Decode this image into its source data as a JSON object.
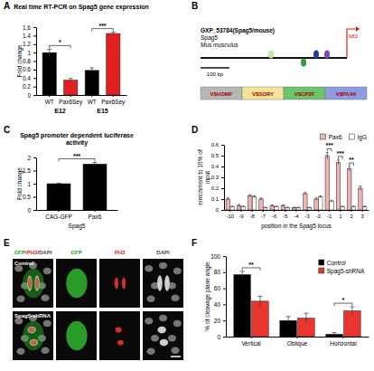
{
  "chart_data": [
    {
      "type": "bar",
      "title": "Real time RT-PCR on Spag5 gene expression",
      "ylabel": "Fold change",
      "categories": [
        "WT",
        "Pax6Sey",
        "WT",
        "Pax6Sey"
      ],
      "category_groups": [
        "E12",
        "E12",
        "E15",
        "E15"
      ],
      "values": [
        1.0,
        0.35,
        0.58,
        1.45
      ],
      "errors": [
        0.08,
        0.04,
        0.06,
        0.03
      ],
      "colors": [
        "#000000",
        "#e02020",
        "#000000",
        "#e02020"
      ],
      "ylim": [
        0,
        1.6
      ],
      "yticks": [
        0,
        0.2,
        0.4,
        0.6,
        0.8,
        1,
        1.2,
        1.4,
        1.6
      ],
      "annotations": [
        {
          "text": "*",
          "span": [
            0,
            1
          ]
        },
        {
          "text": "***",
          "span": [
            2,
            3
          ]
        }
      ]
    },
    {
      "type": "bar",
      "title": "Spag5 promoter dependent luciferase activity",
      "ylabel": "Fold change",
      "xlabel": "Spag5",
      "categories": [
        "CAG-GFP",
        "Pax6"
      ],
      "values": [
        1.0,
        1.75
      ],
      "errors": [
        0.02,
        0.06
      ],
      "color": "#000000",
      "ylim": [
        0,
        2
      ],
      "yticks": [
        0,
        0.5,
        1,
        1.5,
        2
      ],
      "annotations": [
        {
          "text": "***",
          "span": [
            0,
            1
          ]
        }
      ]
    },
    {
      "type": "bar",
      "ylabel": "enrichment to 10% of input",
      "xlabel": "position in the Spag5 locus",
      "categories": [
        -10,
        -9,
        -8,
        -7,
        -6,
        -5,
        -4,
        -3,
        -2,
        -1,
        1,
        2,
        3
      ],
      "series": [
        {
          "name": "Pax6",
          "color": "#f2b3b0",
          "values": [
            0.1,
            0.04,
            0.13,
            0.1,
            0.04,
            0.04,
            0.02,
            0.15,
            0.1,
            0.5,
            0.44,
            0.38,
            0.2
          ],
          "errors": [
            0.01,
            0.01,
            0.01,
            0.01,
            0.005,
            0.005,
            0.005,
            0.01,
            0.01,
            0.03,
            0.02,
            0.02,
            0.02
          ]
        },
        {
          "name": "IgG",
          "color": "#ffffff",
          "values": [
            0.03,
            0.03,
            0.12,
            0.02,
            0.03,
            0.02,
            0.02,
            0.02,
            0.12,
            0.08,
            0.03,
            0.03,
            0.03
          ],
          "errors": [
            0.005,
            0.005,
            0.01,
            0.005,
            0.005,
            0.005,
            0.005,
            0.005,
            0.01,
            0.01,
            0.005,
            0.005,
            0.005
          ]
        }
      ],
      "ylim": [
        0,
        0.6
      ],
      "yticks": [
        0,
        0.1,
        0.2,
        0.3,
        0.4,
        0.5,
        0.6
      ],
      "legend": "top",
      "annotations": [
        {
          "text": "***",
          "category": -1
        },
        {
          "text": "***",
          "category": 1
        },
        {
          "text": "**",
          "category": 2
        }
      ]
    },
    {
      "type": "bar",
      "ylabel": "% of cleavage plane angle",
      "categories": [
        "Vertical",
        "Oblique",
        "Horizontal"
      ],
      "series": [
        {
          "name": "Control",
          "color": "#000000",
          "values": [
            77,
            20,
            3
          ],
          "errors": [
            4,
            5,
            2
          ]
        },
        {
          "name": "Spag5-shRNA",
          "color": "#e8352e",
          "values": [
            44,
            23,
            32
          ],
          "errors": [
            6,
            6,
            5
          ]
        }
      ],
      "ylim": [
        0,
        100
      ],
      "yticks": [
        0,
        20,
        40,
        60,
        80,
        100
      ],
      "legend": "upper right",
      "annotations": [
        {
          "text": "**",
          "category": "Vertical"
        },
        {
          "text": "*",
          "category": "Horizontal"
        }
      ]
    }
  ],
  "panels": [
    "A",
    "B",
    "C",
    "D",
    "E",
    "F"
  ],
  "diagram": {
    "id": "GXP_53784(Spag5/mouse)",
    "gene": "Spag5",
    "species": "Mus musculus",
    "scale": "100 bp",
    "end": 682,
    "sites": [
      {
        "label": "V$HOMF",
        "color": "#b8b8b8"
      },
      {
        "label": "V$SORY",
        "color": "#f3e49a"
      },
      {
        "label": "V$CP2F",
        "color": "#6cc46c"
      },
      {
        "label": "V$PAX6",
        "color": "#8c9ee0"
      }
    ]
  },
  "images": {
    "columns": [
      "GFP/PH3/DAPI",
      "GFP",
      "PH3",
      "DAPI"
    ],
    "rows": [
      "Control",
      "Spag5-shRNA"
    ]
  }
}
